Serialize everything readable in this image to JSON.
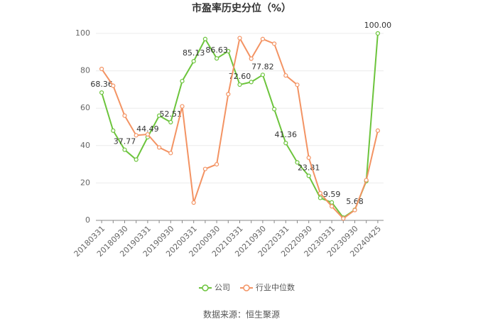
{
  "chart_data": {
    "type": "line",
    "title": "市盈率历史分位（%）",
    "source": "数据来源：恒生聚源",
    "categories": [
      "20180331",
      null,
      "20180930",
      null,
      "20190331",
      null,
      "20190930",
      null,
      "20200331",
      null,
      "20200930",
      null,
      "20210331",
      null,
      "20210930",
      null,
      "20220331",
      null,
      "20220930",
      null,
      "20230331",
      null,
      "20230930",
      null,
      "20240425"
    ],
    "series": [
      {
        "name": "公司",
        "color": "#6cc43c",
        "values": [
          68.36,
          48,
          37.77,
          32.5,
          44.49,
          56,
          52.51,
          74.5,
          85.13,
          97,
          86.63,
          90.5,
          72.6,
          74,
          77.82,
          59.5,
          41.36,
          31,
          23.81,
          12,
          9.59,
          1.5,
          5.68,
          21,
          100
        ],
        "value_labels": [
          "68.36",
          null,
          "37.77",
          null,
          "44.49",
          null,
          "52.51",
          null,
          "85.13",
          null,
          "86.63",
          null,
          "72.60",
          null,
          "77.82",
          null,
          "41.36",
          null,
          "23.81",
          null,
          "9.59",
          null,
          "5.68",
          null,
          "100.00"
        ]
      },
      {
        "name": "行业中位数",
        "color": "#f39363",
        "values": [
          81,
          72,
          56,
          45.5,
          46,
          39,
          36,
          61,
          9.5,
          27.5,
          30,
          67.5,
          97.5,
          86.5,
          97,
          94.5,
          77.5,
          72.5,
          33.5,
          14.5,
          7.5,
          1,
          5.5,
          21.5,
          48
        ]
      }
    ],
    "ylim": [
      0,
      100
    ],
    "yticks": [
      0,
      20,
      40,
      60,
      80,
      100
    ],
    "grid": true,
    "legend": "bottom"
  }
}
